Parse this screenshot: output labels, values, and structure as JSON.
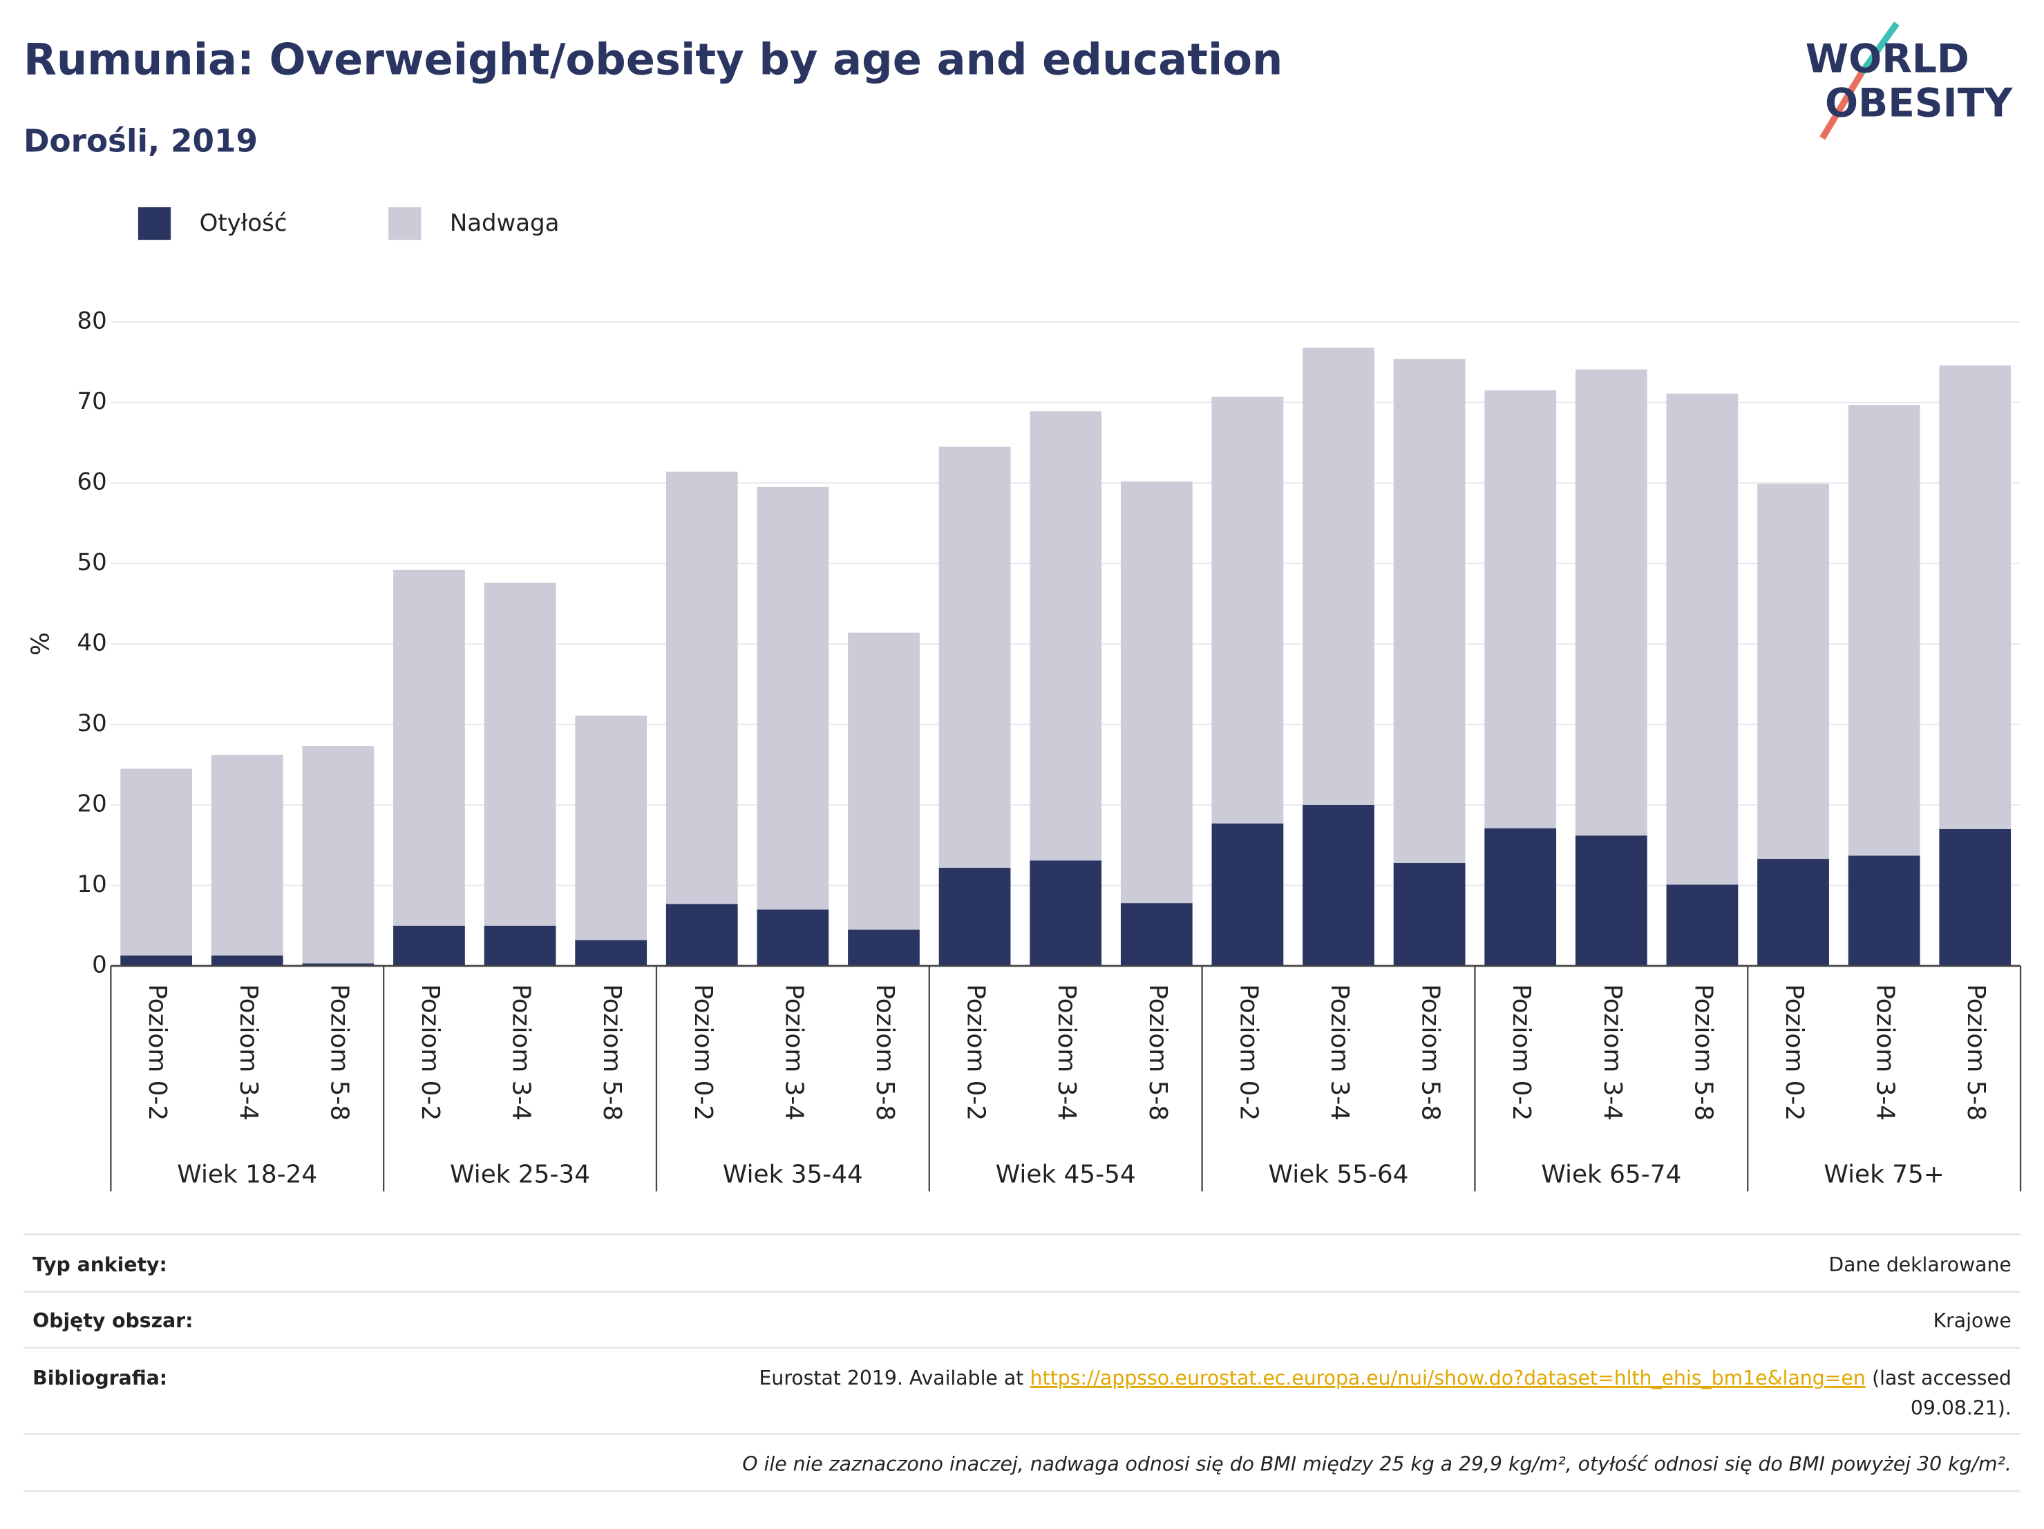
{
  "chart_data": {
    "type": "stacked_bar",
    "title": "Rumunia: Overweight/obesity by age and education",
    "subtitle": "Dorośli, 2019",
    "logo": [
      "WORLD",
      "OBESITY"
    ],
    "y_label": "%",
    "categories": [
      "Poziom 0-2",
      "Poziom 3-4",
      "Poziom 5-8",
      "Poziom 0-2",
      "Poziom 3-4",
      "Poziom 5-8",
      "Poziom 0-2",
      "Poziom 3-4",
      "Poziom 5-8",
      "Poziom 0-2",
      "Poziom 3-4",
      "Poziom 5-8",
      "Poziom 0-2",
      "Poziom 3-4",
      "Poziom 5-8",
      "Poziom 0-2",
      "Poziom 3-4",
      "Poziom 5-8",
      "Poziom 0-2",
      "Poziom 3-4",
      "Poziom 5-8"
    ],
    "groups": [
      "Wiek 18-24",
      "Wiek 25-34",
      "Wiek 35-44",
      "Wiek 45-54",
      "Wiek 55-64",
      "Wiek 65-74",
      "Wiek 75+"
    ],
    "series": [
      {
        "name": "Otyłość",
        "color": "#2a3561",
        "values": [
          1.3,
          1.3,
          0.3,
          5.0,
          5.0,
          3.2,
          7.7,
          7.0,
          4.5,
          12.2,
          13.1,
          7.8,
          17.7,
          20.0,
          12.8,
          17.1,
          16.2,
          10.1,
          13.3,
          13.7,
          17.0
        ]
      },
      {
        "name": "Nadwaga",
        "color": "#cbccd8",
        "values": [
          23.2,
          24.9,
          27.0,
          44.2,
          42.6,
          27.9,
          53.7,
          52.5,
          36.9,
          52.3,
          55.8,
          52.4,
          53.0,
          56.8,
          62.6,
          54.4,
          57.9,
          61.0,
          46.6,
          56.0,
          57.6
        ]
      }
    ],
    "ylim": [
      0,
      80
    ],
    "yticks": [
      0,
      10,
      20,
      30,
      40,
      50,
      60,
      70,
      80
    ],
    "grid": true
  },
  "footer": {
    "rows": [
      {
        "label": "Typ ankiety:",
        "value": "Dane deklarowane"
      },
      {
        "label": "Objęty obszar:",
        "value": "Krajowe"
      }
    ],
    "bibliography": {
      "label": "Bibliografia:",
      "prefix": "Eurostat 2019. Available at",
      "link": "https://appsso.eurostat.ec.europa.eu/nui/show.do?dataset=hlth_ehis_bm1e&lang=en",
      "suffix": "(last accessed",
      "suffix2": "09.08.21)."
    },
    "note": "O ile nie zaznaczono inaczej, nadwaga odnosi się do BMI między 25 kg a 29,9 kg/m², otyłość odnosi się do BMI powyżej 30 kg/m²."
  }
}
